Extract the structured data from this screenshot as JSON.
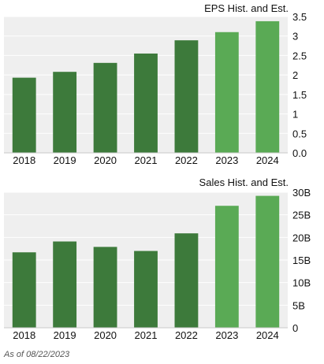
{
  "colors": {
    "historical": "#3d7a3b",
    "estimate": "#5aaa55",
    "plot_bg": "#efefef",
    "grid": "#ffffff",
    "axis": "#c8c8c8"
  },
  "chart_data": [
    {
      "type": "bar",
      "title": "EPS Hist. and Est.",
      "categories": [
        "2018",
        "2019",
        "2020",
        "2021",
        "2022",
        "2023",
        "2024"
      ],
      "values": [
        1.93,
        2.08,
        2.31,
        2.55,
        2.89,
        3.1,
        3.38
      ],
      "estimate_flags": [
        false,
        false,
        false,
        false,
        false,
        true,
        true
      ],
      "ylim": [
        0,
        3.5
      ],
      "yticks": [
        0,
        0.5,
        1,
        1.5,
        2,
        2.5,
        3,
        3.5
      ],
      "ytick_labels": [
        "0.0",
        "0.5",
        "1",
        "1.5",
        "2",
        "2.5",
        "3",
        "3.5"
      ],
      "grid": true
    },
    {
      "type": "bar",
      "title": "Sales Hist. and Est.",
      "categories": [
        "2018",
        "2019",
        "2020",
        "2021",
        "2022",
        "2023",
        "2024"
      ],
      "values": [
        16.7,
        19.1,
        17.9,
        17.0,
        20.9,
        27.0,
        29.2
      ],
      "estimate_flags": [
        false,
        false,
        false,
        false,
        false,
        true,
        true
      ],
      "ylim": [
        0,
        30
      ],
      "yticks": [
        0,
        5,
        10,
        15,
        20,
        25,
        30
      ],
      "ytick_labels": [
        "0",
        "5B",
        "10B",
        "15B",
        "20B",
        "25B",
        "30B"
      ],
      "grid": true
    }
  ],
  "footer": "As of 08/22/2023"
}
